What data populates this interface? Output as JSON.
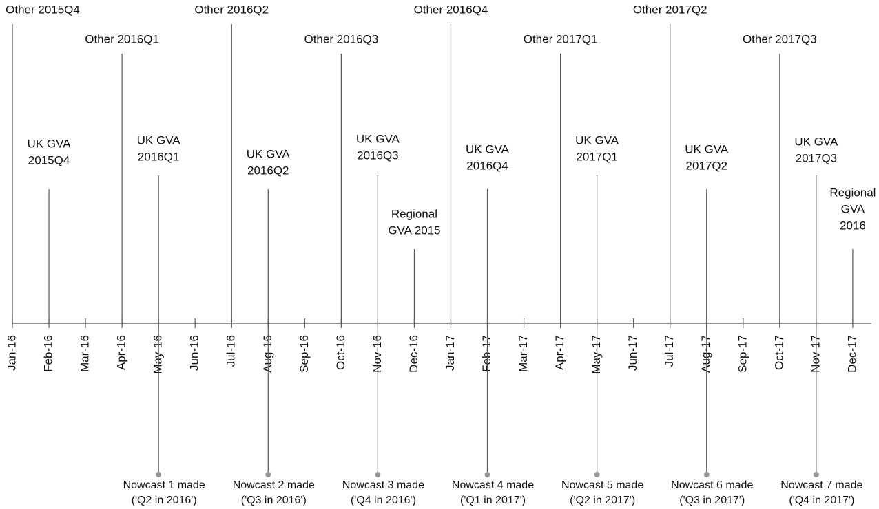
{
  "timeline": {
    "months": [
      "Jan-16",
      "Feb-16",
      "Mar-16",
      "Apr-16",
      "May-16",
      "Jun-16",
      "Jul-16",
      "Aug-16",
      "Sep-16",
      "Oct-16",
      "Nov-16",
      "Dec-16",
      "Jan-17",
      "Feb-17",
      "Mar-17",
      "Apr-17",
      "May-17",
      "Jun-17",
      "Jul-17",
      "Aug-17",
      "Sep-17",
      "Oct-17",
      "Nov-17",
      "Dec-17"
    ],
    "other_releases": [
      "Other 2015Q4",
      "Other 2016Q1",
      "Other 2016Q2",
      "Other 2016Q3",
      "Other 2016Q4",
      "Other 2017Q1",
      "Other 2017Q2",
      "Other 2017Q3"
    ],
    "uk_gva": [
      [
        "UK GVA",
        "2015Q4"
      ],
      [
        "UK GVA",
        "2016Q1"
      ],
      [
        "UK GVA",
        "2016Q2"
      ],
      [
        "UK GVA",
        "2016Q3"
      ],
      [
        "UK GVA",
        "2016Q4"
      ],
      [
        "UK GVA",
        "2017Q1"
      ],
      [
        "UK GVA",
        "2017Q2"
      ],
      [
        "UK GVA",
        "2017Q3"
      ]
    ],
    "regional_gva": [
      [
        "Regional",
        "GVA 2015"
      ],
      [
        "Regional",
        "GVA",
        "2016"
      ]
    ],
    "nowcasts": [
      [
        "Nowcast 1 made",
        "('Q2 in 2016')"
      ],
      [
        "Nowcast 2 made",
        "('Q3 in 2016')"
      ],
      [
        "Nowcast 3 made",
        "('Q4 in 2016')"
      ],
      [
        "Nowcast 4 made",
        "('Q1 in 2017')"
      ],
      [
        "Nowcast 5 made",
        "('Q2 in 2017')"
      ],
      [
        "Nowcast 6 made",
        "('Q3 in 2017')"
      ],
      [
        "Nowcast 7 made",
        "('Q4 in 2017')"
      ]
    ]
  }
}
